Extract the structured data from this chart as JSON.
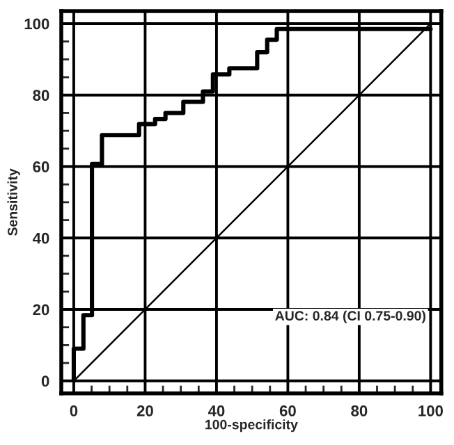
{
  "chart_data": {
    "type": "line",
    "xlabel": "100-specificity",
    "ylabel": "Sensitivity",
    "xlim": [
      -3.5,
      103
    ],
    "ylim": [
      -3.5,
      103.5
    ],
    "xticks": [
      0,
      20,
      40,
      60,
      80,
      100
    ],
    "yticks": [
      0,
      20,
      40,
      60,
      80,
      100
    ],
    "grid": true,
    "series": [
      {
        "color": "#000000",
        "x": [
          0,
          0,
          2.7,
          2.7,
          5.1,
          5.1,
          7.9,
          7.9,
          18.3,
          18.3,
          22.8,
          22.8,
          25.7,
          25.7,
          30.7,
          30.7,
          36.2,
          36.2,
          39,
          39,
          43.6,
          43.6,
          51.4,
          51.4,
          54.2,
          54.2,
          56.9,
          56.9,
          100
        ],
        "values": [
          0,
          9,
          9,
          18.4,
          18.4,
          60.7,
          60.7,
          68.8,
          68.8,
          71.9,
          71.9,
          73.3,
          73.3,
          75,
          75,
          78.1,
          78.1,
          81,
          81,
          85.8,
          85.8,
          87.5,
          87.5,
          92,
          92,
          95.5,
          95.5,
          98.5,
          98.5
        ]
      },
      {
        "color": "#000000",
        "x": [
          0,
          100
        ],
        "values": [
          0,
          100
        ]
      }
    ],
    "annotations": [
      "AUC: 0.84 (CI 0.75-0.90)"
    ]
  }
}
